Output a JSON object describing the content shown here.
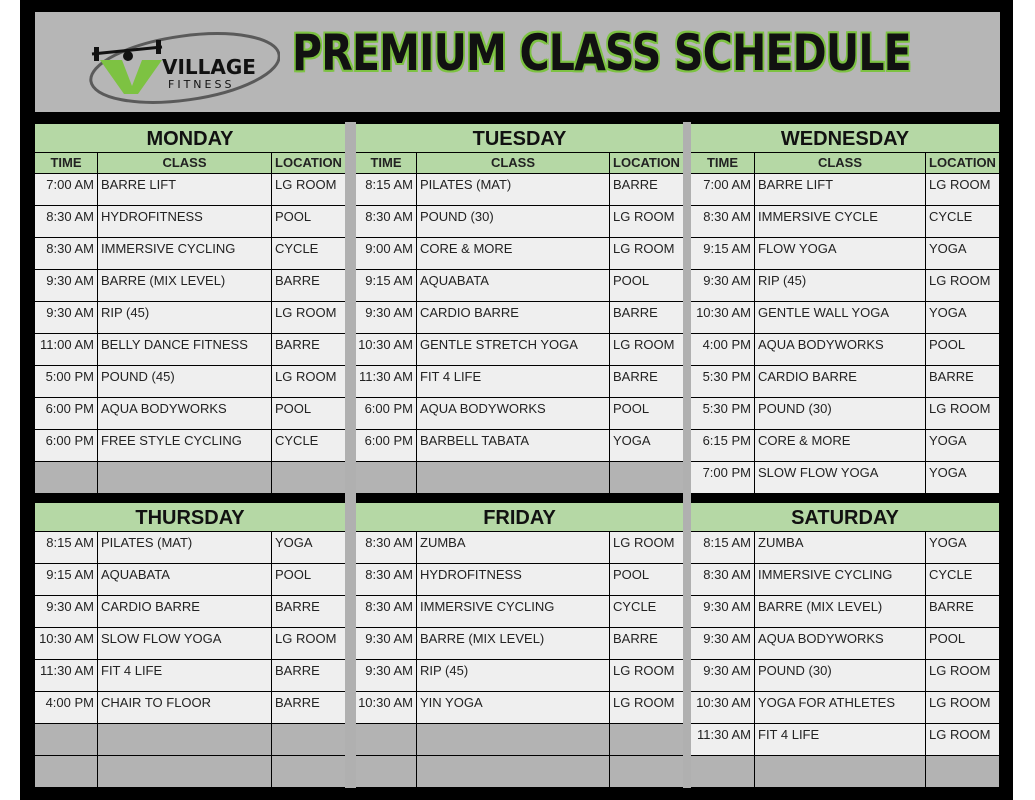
{
  "logo": {
    "line1": "VILLAGE",
    "line2": "FITNESS"
  },
  "title": "PREMIUM CLASS SCHEDULE",
  "columns": {
    "time": "TIME",
    "class": "CLASS",
    "location": "LOCATION"
  },
  "colors": {
    "accent_green": "#b5d8a5",
    "title_outline": "#7dc242",
    "header_gray": "#b6b6b6"
  },
  "days": [
    {
      "name": "MONDAY",
      "rows": [
        [
          "7:00 AM",
          "BARRE LIFT",
          "LG ROOM"
        ],
        [
          "8:30 AM",
          "HYDROFITNESS",
          "POOL"
        ],
        [
          "8:30 AM",
          "IMMERSIVE CYCLING",
          "CYCLE"
        ],
        [
          "9:30 AM",
          "BARRE (MIX LEVEL)",
          "BARRE"
        ],
        [
          "9:30 AM",
          "RIP (45)",
          "LG ROOM"
        ],
        [
          "11:00 AM",
          "BELLY DANCE FITNESS",
          "BARRE"
        ],
        [
          "5:00 PM",
          "POUND (45)",
          "LG ROOM"
        ],
        [
          "6:00 PM",
          "AQUA BODYWORKS",
          "POOL"
        ],
        [
          "6:00 PM",
          "FREE STYLE CYCLING",
          "CYCLE"
        ]
      ]
    },
    {
      "name": "TUESDAY",
      "rows": [
        [
          "8:15 AM",
          "PILATES (MAT)",
          "BARRE"
        ],
        [
          "8:30 AM",
          "POUND (30)",
          "LG ROOM"
        ],
        [
          "9:00 AM",
          "CORE & MORE",
          "LG ROOM"
        ],
        [
          "9:15 AM",
          "AQUABATA",
          "POOL"
        ],
        [
          "9:30 AM",
          "CARDIO BARRE",
          "BARRE"
        ],
        [
          "10:30 AM",
          "GENTLE STRETCH YOGA",
          "LG ROOM"
        ],
        [
          "11:30 AM",
          "FIT 4 LIFE",
          "BARRE"
        ],
        [
          "6:00 PM",
          "AQUA BODYWORKS",
          "POOL"
        ],
        [
          "6:00 PM",
          "BARBELL TABATA",
          "YOGA"
        ]
      ]
    },
    {
      "name": "WEDNESDAY",
      "rows": [
        [
          "7:00 AM",
          "BARRE LIFT",
          "LG ROOM"
        ],
        [
          "8:30 AM",
          "IMMERSIVE CYCLE",
          "CYCLE"
        ],
        [
          "9:15 AM",
          "FLOW YOGA",
          "YOGA"
        ],
        [
          "9:30 AM",
          "RIP (45)",
          "LG ROOM"
        ],
        [
          "10:30 AM",
          "GENTLE WALL YOGA",
          "YOGA"
        ],
        [
          "4:00 PM",
          "AQUA BODYWORKS",
          "POOL"
        ],
        [
          "5:30 PM",
          "CARDIO BARRE",
          "BARRE"
        ],
        [
          "5:30 PM",
          "POUND (30)",
          "LG ROOM"
        ],
        [
          "6:15 PM",
          "CORE & MORE",
          "YOGA"
        ],
        [
          "7:00 PM",
          "SLOW FLOW YOGA",
          "YOGA"
        ]
      ]
    },
    {
      "name": "THURSDAY",
      "rows": [
        [
          "8:15 AM",
          "PILATES (MAT)",
          "YOGA"
        ],
        [
          "9:15 AM",
          "AQUABATA",
          "POOL"
        ],
        [
          "9:30 AM",
          "CARDIO BARRE",
          "BARRE"
        ],
        [
          "10:30 AM",
          "SLOW FLOW YOGA",
          "LG ROOM"
        ],
        [
          "11:30 AM",
          "FIT 4 LIFE",
          "BARRE"
        ],
        [
          "4:00 PM",
          "CHAIR TO FLOOR",
          "BARRE"
        ]
      ]
    },
    {
      "name": "FRIDAY",
      "rows": [
        [
          "8:30 AM",
          "ZUMBA",
          "LG ROOM"
        ],
        [
          "8:30 AM",
          "HYDROFITNESS",
          "POOL"
        ],
        [
          "8:30 AM",
          "IMMERSIVE CYCLING",
          "CYCLE"
        ],
        [
          "9:30 AM",
          "BARRE (MIX LEVEL)",
          "BARRE"
        ],
        [
          "9:30 AM",
          "RIP (45)",
          "LG ROOM"
        ],
        [
          "10:30 AM",
          "YIN YOGA",
          "LG ROOM"
        ]
      ]
    },
    {
      "name": "SATURDAY",
      "rows": [
        [
          "8:15 AM",
          "ZUMBA",
          "YOGA"
        ],
        [
          "8:30 AM",
          "IMMERSIVE CYCLING",
          "CYCLE"
        ],
        [
          "9:30 AM",
          "BARRE (MIX LEVEL)",
          "BARRE"
        ],
        [
          "9:30 AM",
          "AQUA BODYWORKS",
          "POOL"
        ],
        [
          "9:30 AM",
          "POUND (30)",
          "LG ROOM"
        ],
        [
          "10:30 AM",
          "YOGA FOR ATHLETES",
          "LG ROOM"
        ],
        [
          "11:30 AM",
          "FIT 4 LIFE",
          "LG ROOM"
        ]
      ]
    }
  ]
}
